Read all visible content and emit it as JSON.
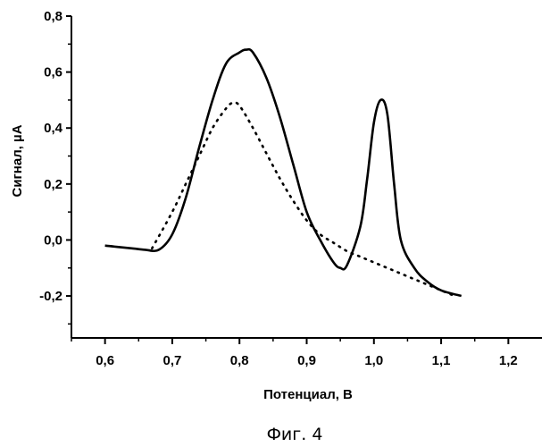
{
  "chart_data": {
    "type": "line",
    "title": "",
    "xlabel": "Потенциал, В",
    "ylabel": "Сигнал, µA",
    "caption": "Фиг. 4",
    "xlim": [
      0.55,
      1.25
    ],
    "ylim": [
      -0.35,
      0.8
    ],
    "x_ticks": [
      {
        "value": 0.6,
        "label": "0,6"
      },
      {
        "value": 0.7,
        "label": "0,7"
      },
      {
        "value": 0.8,
        "label": "0,8"
      },
      {
        "value": 0.9,
        "label": "0,9"
      },
      {
        "value": 1.0,
        "label": "1,0"
      },
      {
        "value": 1.1,
        "label": "1,1"
      },
      {
        "value": 1.2,
        "label": "1,2"
      }
    ],
    "y_ticks": [
      {
        "value": -0.2,
        "label": "-0,2"
      },
      {
        "value": 0.0,
        "label": "0,0"
      },
      {
        "value": 0.2,
        "label": "0,2"
      },
      {
        "value": 0.4,
        "label": "0,4"
      },
      {
        "value": 0.6,
        "label": "0,6"
      },
      {
        "value": 0.8,
        "label": "0,8"
      }
    ],
    "grid": false,
    "legend": "none",
    "series": [
      {
        "style": "solid",
        "x": [
          0.6,
          0.62,
          0.64,
          0.66,
          0.68,
          0.7,
          0.72,
          0.74,
          0.76,
          0.78,
          0.8,
          0.81,
          0.82,
          0.84,
          0.86,
          0.88,
          0.9,
          0.92,
          0.94,
          0.95,
          0.96,
          0.98,
          0.99,
          1.0,
          1.01,
          1.02,
          1.03,
          1.04,
          1.06,
          1.08,
          1.1,
          1.13
        ],
        "y": [
          -0.02,
          -0.025,
          -0.03,
          -0.035,
          -0.035,
          0.02,
          0.15,
          0.33,
          0.5,
          0.63,
          0.67,
          0.68,
          0.67,
          0.58,
          0.44,
          0.27,
          0.1,
          0.0,
          -0.08,
          -0.1,
          -0.09,
          0.05,
          0.22,
          0.42,
          0.5,
          0.45,
          0.2,
          0.0,
          -0.1,
          -0.15,
          -0.18,
          -0.2
        ]
      },
      {
        "style": "dotted",
        "x": [
          0.67,
          0.7,
          0.72,
          0.74,
          0.76,
          0.78,
          0.79,
          0.8,
          0.82,
          0.84,
          0.86,
          0.88,
          0.9,
          0.92,
          0.94,
          0.96,
          0.98,
          1.0,
          1.02,
          1.04,
          1.06,
          1.08,
          1.1,
          1.12
        ],
        "y": [
          -0.03,
          0.1,
          0.2,
          0.3,
          0.4,
          0.47,
          0.49,
          0.48,
          0.4,
          0.31,
          0.22,
          0.14,
          0.07,
          0.02,
          -0.01,
          -0.04,
          -0.06,
          -0.08,
          -0.1,
          -0.12,
          -0.14,
          -0.16,
          -0.18,
          -0.2
        ]
      }
    ]
  }
}
